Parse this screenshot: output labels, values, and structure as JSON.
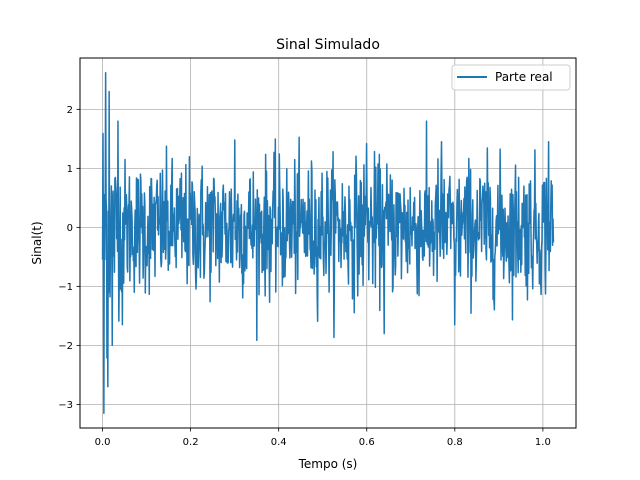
{
  "chart_data": {
    "type": "line",
    "title": "Sinal Simulado",
    "xlabel": "Tempo (s)",
    "ylabel": "Sinal(t)",
    "xlim": [
      -0.0512,
      1.0752
    ],
    "ylim": [
      -3.4,
      2.87
    ],
    "grid": true,
    "legend_position": "upper right",
    "x_ticks": [
      0.0,
      0.2,
      0.4,
      0.6,
      0.8,
      1.0
    ],
    "x_tick_labels": [
      "0.0",
      "0.2",
      "0.4",
      "0.6",
      "0.8",
      "1.0"
    ],
    "y_ticks": [
      -3,
      -2,
      -1,
      0,
      1,
      2
    ],
    "y_tick_labels": [
      "−3",
      "−2",
      "−1",
      "0",
      "1",
      "2"
    ],
    "x_range": [
      0,
      1.024
    ],
    "sample_count": 1024,
    "approx_std_dev": 0.55,
    "extremes": [
      {
        "x": 0.003,
        "y": -3.15
      },
      {
        "x": 0.007,
        "y": 2.62
      },
      {
        "x": 0.012,
        "y": -2.7
      },
      {
        "x": 0.015,
        "y": 2.3
      },
      {
        "x": 0.022,
        "y": -2.0
      },
      {
        "x": 0.035,
        "y": 1.8
      },
      {
        "x": 0.045,
        "y": -1.65
      },
      {
        "x": 0.3,
        "y": 1.48
      },
      {
        "x": 0.6,
        "y": 1.42
      },
      {
        "x": 0.77,
        "y": 1.45
      },
      {
        "x": 1.013,
        "y": 1.45
      },
      {
        "x": 0.64,
        "y": -1.8
      },
      {
        "x": 0.8,
        "y": -1.65
      }
    ],
    "series": [
      {
        "name": "Parte real",
        "color": "#1f77b4"
      }
    ]
  }
}
